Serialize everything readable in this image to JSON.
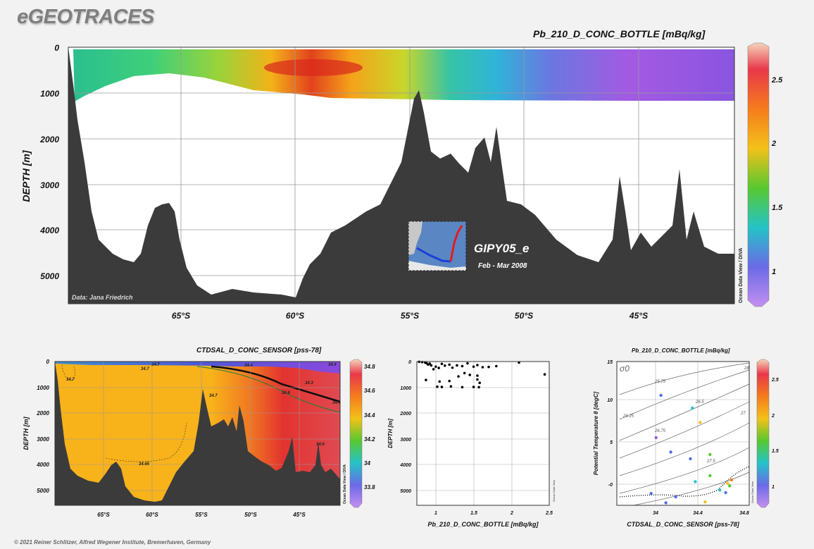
{
  "header": {
    "logo": "eGEOTRACES"
  },
  "footer": {
    "copyright": "© 2021 Reiner Schlitzer, Alfred Wegener Institute, Bremerhaven, Germany"
  },
  "colors": {
    "bathymetry": "#3b3b3b",
    "background": "#f2f2f2",
    "plot_background": "#ffffff",
    "grid": "#9a9a9a",
    "track_south": "#1c3fd6",
    "track_north": "#e01c1c"
  },
  "chart_data": [
    {
      "id": "main_section",
      "type": "heatmap",
      "title": "Pb_210_D_CONC_BOTTLE [mBq/kg]",
      "xlabel": "",
      "ylabel": "DEPTH [m]",
      "x_ticks": [
        "65°S",
        "60°S",
        "55°S",
        "50°S",
        "45°S"
      ],
      "y_ticks": [
        "0",
        "1000",
        "2000",
        "3000",
        "4000",
        "5000"
      ],
      "ylim": [
        0,
        5600
      ],
      "grid": true,
      "credit": "Data: Jana Friedrich",
      "watermark": "Ocean Data View / DIVA",
      "colorbar": {
        "ticks": [
          "1",
          "1.5",
          "2",
          "2.5"
        ],
        "range": [
          0.7,
          2.75
        ]
      },
      "inset": {
        "cruise": "GIPY05_e",
        "dates": "Feb - Mar 2008"
      }
    },
    {
      "id": "salinity_section",
      "type": "heatmap",
      "title": "CTDSAL_D_CONC_SENSOR [pss-78]",
      "ylabel": "DEPTH [m]",
      "x_ticks": [
        "65°S",
        "60°S",
        "55°S",
        "50°S",
        "45°S"
      ],
      "y_ticks": [
        "0",
        "1000",
        "2000",
        "3000",
        "4000",
        "5000"
      ],
      "ylim": [
        0,
        5600
      ],
      "contour_labels": [
        "34.7",
        "34.7",
        "34.7",
        "34.6",
        "34.3",
        "34.4",
        "34.7",
        "34.65",
        "34.4",
        "34.6",
        "34.4"
      ],
      "watermark": "Ocean Data View / DIVA",
      "colorbar": {
        "ticks": [
          "34.8",
          "34.6",
          "34.4",
          "34.2",
          "34",
          "33.8"
        ],
        "range": [
          33.7,
          34.85
        ]
      }
    },
    {
      "id": "profile_scatter",
      "type": "scatter",
      "title": "",
      "xlabel": "Pb_210_D_CONC_BOTTLE [mBq/kg]",
      "ylabel": "DEPTH [m]",
      "x_ticks": [
        "1",
        "1.5",
        "2",
        "2.5"
      ],
      "y_ticks": [
        "0",
        "1000",
        "2000",
        "3000",
        "4000",
        "5000"
      ],
      "xlim": [
        0.75,
        2.5
      ],
      "ylim": [
        0,
        5600
      ],
      "watermark": "Ocean Data View",
      "points": [
        [
          0.78,
          10
        ],
        [
          0.82,
          25
        ],
        [
          0.86,
          40
        ],
        [
          0.88,
          70
        ],
        [
          0.9,
          120
        ],
        [
          0.92,
          80
        ],
        [
          0.94,
          150
        ],
        [
          0.97,
          300
        ],
        [
          1.0,
          200
        ],
        [
          1.04,
          250
        ],
        [
          1.08,
          90
        ],
        [
          1.12,
          160
        ],
        [
          1.18,
          120
        ],
        [
          1.22,
          240
        ],
        [
          1.28,
          150
        ],
        [
          1.35,
          180
        ],
        [
          1.42,
          70
        ],
        [
          1.5,
          200
        ],
        [
          1.55,
          140
        ],
        [
          1.62,
          220
        ],
        [
          1.7,
          210
        ],
        [
          1.8,
          180
        ],
        [
          2.1,
          40
        ],
        [
          1.38,
          450
        ],
        [
          1.3,
          580
        ],
        [
          1.45,
          520
        ],
        [
          1.55,
          550
        ],
        [
          0.87,
          720
        ],
        [
          1.05,
          780
        ],
        [
          1.18,
          760
        ],
        [
          1.55,
          700
        ],
        [
          1.58,
          830
        ],
        [
          1.02,
          980
        ],
        [
          1.08,
          990
        ],
        [
          1.2,
          970
        ],
        [
          1.35,
          1000
        ],
        [
          1.5,
          990
        ],
        [
          1.57,
          1000
        ],
        [
          2.44,
          500
        ]
      ]
    },
    {
      "id": "ts_diagram",
      "type": "scatter",
      "title": "Pb_210_D_CONC_BOTTLE [mBq/kg]",
      "xlabel": "CTDSAL_D_CONC_SENSOR [pss-78]",
      "ylabel": "Potential Temperature θ [degC]",
      "x_ticks": [
        "34",
        "34.4",
        "34.8"
      ],
      "y_ticks": [
        "-0",
        "5",
        "10",
        "15"
      ],
      "xlim": [
        33.55,
        34.9
      ],
      "ylim": [
        -2,
        15
      ],
      "sigma_label": "σ0",
      "isopycnal_labels": [
        "25.75",
        "26.25",
        "26.75",
        "26.5",
        "27",
        "27.5",
        "28"
      ],
      "watermark": "Ocean Data View",
      "colorbar": {
        "ticks": [
          "2.5",
          "2",
          "1.5",
          "1"
        ],
        "range": [
          0.7,
          2.75
        ]
      },
      "colored_points": [
        [
          34.0,
          11.0,
          1.0
        ],
        [
          34.32,
          9.5,
          1.3
        ],
        [
          34.4,
          7.8,
          1.9
        ],
        [
          34.3,
          3.5,
          0.9
        ],
        [
          33.95,
          6.0,
          0.8
        ],
        [
          34.1,
          4.3,
          1.1
        ],
        [
          34.5,
          1.5,
          1.6
        ],
        [
          34.35,
          0.8,
          1.5
        ],
        [
          33.9,
          -0.6,
          0.9
        ],
        [
          34.15,
          -1.0,
          1.2
        ],
        [
          34.6,
          -0.2,
          1.3
        ],
        [
          34.7,
          0.3,
          1.7
        ],
        [
          34.68,
          0.6,
          1.9
        ],
        [
          34.72,
          1.0,
          2.3
        ],
        [
          34.66,
          -0.5,
          1.1
        ],
        [
          34.45,
          -1.6,
          2.0
        ],
        [
          34.05,
          -1.7,
          1.0
        ],
        [
          34.5,
          4.0,
          1.8
        ]
      ]
    }
  ]
}
